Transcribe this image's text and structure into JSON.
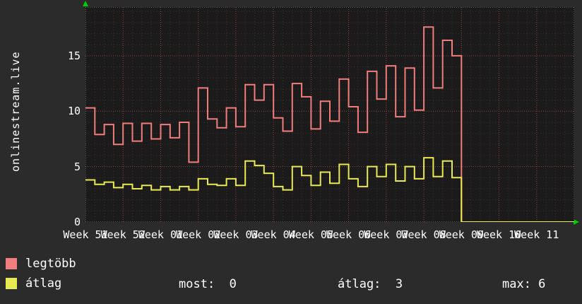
{
  "y_axis_label": "onlinestream.live",
  "colors": {
    "page_bg": "#2b2b2b",
    "plot_bg": "#1b1b1b",
    "text": "#ffffff",
    "arrow": "#00cc00"
  },
  "chart_data": {
    "type": "line",
    "style": "step",
    "title": "",
    "xlabel": "",
    "ylabel": "onlinestream.live",
    "ylim": [
      0,
      19.4
    ],
    "yticks": [
      0,
      5,
      10,
      15
    ],
    "grid": {
      "minor_color": "#4a2d2d",
      "major_color": "#8f4040",
      "frame_color": "#8a8a8a",
      "grid_on": true
    },
    "legend_position": "bottom-left",
    "x_labels": [
      "Week 51",
      "Week 52",
      "Week 01",
      "Week 02",
      "Week 03",
      "Week 04",
      "Week 05",
      "Week 06",
      "Week 07",
      "Week 08",
      "Week 09",
      "Week 10",
      "Week 11"
    ],
    "series": [
      {
        "name": "legtöbb",
        "color": "#f17d7d",
        "values": [
          10.3,
          7.9,
          8.8,
          7.0,
          8.9,
          7.3,
          8.9,
          7.5,
          8.8,
          7.6,
          9.0,
          5.4,
          12.1,
          9.3,
          8.5,
          10.3,
          8.6,
          12.4,
          11.0,
          12.4,
          9.4,
          8.2,
          12.5,
          11.3,
          8.4,
          10.9,
          9.1,
          12.9,
          10.4,
          8.1,
          13.6,
          11.1,
          14.1,
          9.5,
          13.9,
          10.1,
          17.6,
          12.1,
          16.4,
          15.0,
          0,
          0,
          0,
          0,
          0,
          0,
          0,
          0,
          0,
          0,
          0,
          0
        ]
      },
      {
        "name": "átlag",
        "color": "#e9e951",
        "values": [
          3.8,
          3.4,
          3.6,
          3.1,
          3.4,
          3.0,
          3.3,
          2.9,
          3.2,
          2.9,
          3.2,
          2.9,
          3.9,
          3.4,
          3.3,
          3.9,
          3.3,
          5.5,
          5.1,
          4.4,
          3.2,
          2.9,
          5.0,
          4.2,
          3.3,
          4.5,
          3.5,
          5.2,
          3.9,
          3.2,
          5.0,
          4.1,
          5.2,
          3.7,
          5.0,
          3.9,
          5.8,
          4.1,
          5.5,
          4.0,
          0,
          0,
          0,
          0,
          0,
          0,
          0,
          0,
          0,
          0,
          0,
          0
        ]
      }
    ]
  },
  "legend": {
    "items": [
      {
        "label": "legtöbb",
        "color": "#f17d7d"
      },
      {
        "label": "átlag",
        "color": "#e9e951"
      }
    ]
  },
  "stats": [
    "most:  0",
    "átlag:  3",
    "max: 6"
  ]
}
